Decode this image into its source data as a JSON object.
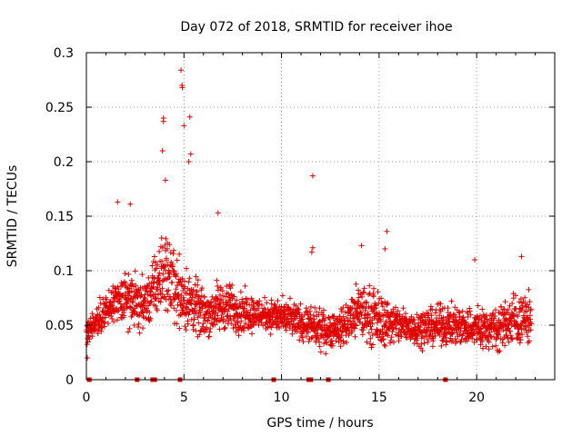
{
  "chart_data": {
    "type": "scatter",
    "title": "Day 072 of 2018, SRMTID for receiver ihoe",
    "xlabel": "GPS time / hours",
    "ylabel": "SRMTID / TECUs",
    "xlim": [
      0,
      24
    ],
    "ylim": [
      0,
      0.3
    ],
    "x_ticks": [
      0,
      5,
      10,
      15,
      20
    ],
    "x_tick_labels": [
      "0",
      "5",
      "10",
      "15",
      "20"
    ],
    "y_ticks": [
      0,
      0.05,
      0.1,
      0.15,
      0.2,
      0.25,
      0.3
    ],
    "y_tick_labels": [
      "0",
      "0.05",
      "0.1",
      "0.15",
      "0.2",
      "0.25",
      "0.3"
    ],
    "grid": true,
    "marker": "plus",
    "color": "#e00000",
    "x_data_range": [
      0,
      22.8
    ],
    "notable_points": [
      {
        "x": 3.95,
        "y": 0.24
      },
      {
        "x": 3.95,
        "y": 0.237
      },
      {
        "x": 4.85,
        "y": 0.284
      },
      {
        "x": 4.9,
        "y": 0.27
      },
      {
        "x": 4.92,
        "y": 0.268
      },
      {
        "x": 5.3,
        "y": 0.241
      },
      {
        "x": 5.0,
        "y": 0.233
      },
      {
        "x": 3.9,
        "y": 0.21
      },
      {
        "x": 5.35,
        "y": 0.207
      },
      {
        "x": 5.25,
        "y": 0.2
      },
      {
        "x": 4.05,
        "y": 0.183
      },
      {
        "x": 11.6,
        "y": 0.187
      },
      {
        "x": 1.6,
        "y": 0.163
      },
      {
        "x": 2.25,
        "y": 0.161
      },
      {
        "x": 6.75,
        "y": 0.153
      },
      {
        "x": 15.4,
        "y": 0.136
      },
      {
        "x": 14.1,
        "y": 0.123
      },
      {
        "x": 15.3,
        "y": 0.12
      },
      {
        "x": 11.6,
        "y": 0.121
      },
      {
        "x": 11.55,
        "y": 0.117
      },
      {
        "x": 19.9,
        "y": 0.11
      },
      {
        "x": 22.3,
        "y": 0.113
      },
      {
        "x": 0.05,
        "y": 0.02
      }
    ],
    "envelope": {
      "hours": [
        0,
        1,
        2,
        3,
        4,
        5,
        6,
        7,
        8,
        9,
        10,
        11,
        12,
        13,
        14,
        15,
        16,
        17,
        18,
        19,
        20,
        21,
        22,
        22.8
      ],
      "typical_min": [
        0.025,
        0.04,
        0.04,
        0.035,
        0.05,
        0.03,
        0.03,
        0.035,
        0.035,
        0.04,
        0.035,
        0.03,
        0.02,
        0.025,
        0.025,
        0.02,
        0.025,
        0.025,
        0.025,
        0.025,
        0.02,
        0.02,
        0.02,
        0.025
      ],
      "typical_max": [
        0.06,
        0.085,
        0.11,
        0.1,
        0.15,
        0.12,
        0.09,
        0.1,
        0.09,
        0.08,
        0.08,
        0.075,
        0.07,
        0.07,
        0.1,
        0.09,
        0.075,
        0.07,
        0.075,
        0.075,
        0.075,
        0.075,
        0.09,
        0.085
      ]
    },
    "bottom_markers_x": [
      0.15,
      2.6,
      3.4,
      3.5,
      4.8,
      9.6,
      11.4,
      11.5,
      12.4,
      18.4
    ]
  }
}
